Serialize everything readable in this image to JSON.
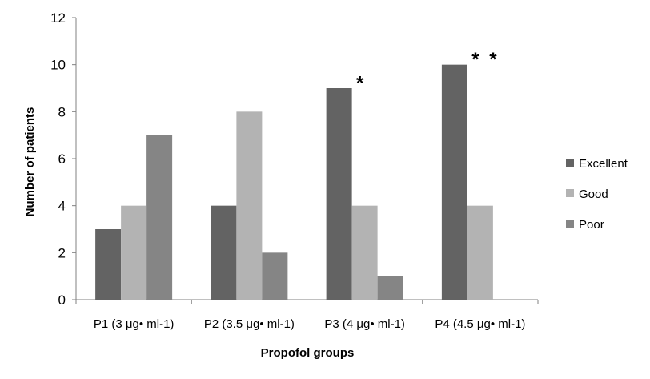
{
  "chart_data": {
    "type": "bar",
    "title": "",
    "xlabel": "Propofol groups",
    "ylabel": "Number of patients",
    "ylim": [
      0,
      12
    ],
    "yticks": [
      0,
      2,
      4,
      6,
      8,
      10,
      12
    ],
    "grid": false,
    "legend_position": "right",
    "categories": [
      "P1 (3 μg• ml-1)",
      "P2 (3.5 μg• ml-1)",
      "P3 (4 μg• ml-1)",
      "P4 (4.5 μg• ml-1)"
    ],
    "series": [
      {
        "name": "Excellent",
        "color": "#636363",
        "values": [
          3,
          4,
          9,
          10
        ]
      },
      {
        "name": "Good",
        "color": "#b3b3b3",
        "values": [
          4,
          8,
          4,
          4
        ]
      },
      {
        "name": "Poor",
        "color": "#858585",
        "values": [
          7,
          2,
          1,
          0
        ]
      }
    ],
    "annotations": [
      {
        "text": "*",
        "category": 2,
        "series": 1,
        "y": 9.5
      },
      {
        "text": "*",
        "category": 3,
        "series": 1,
        "y": 10.5
      },
      {
        "text": "*",
        "category": 3,
        "series": 1,
        "y": 10.5
      }
    ]
  }
}
